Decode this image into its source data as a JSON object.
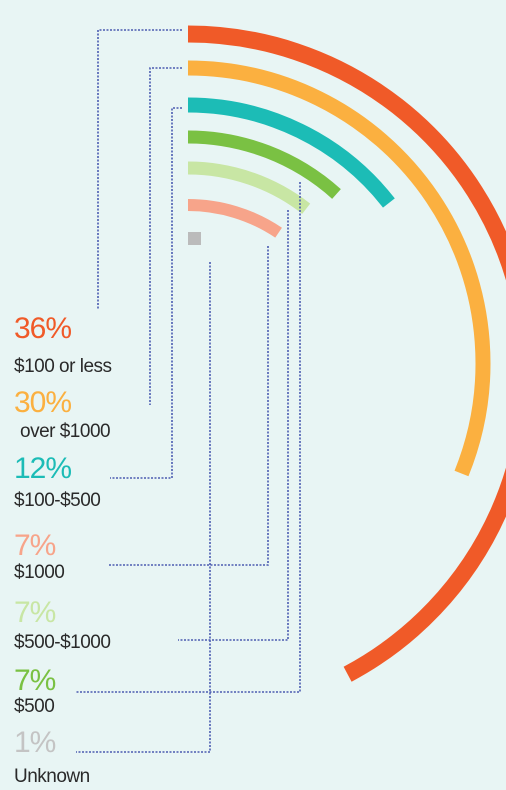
{
  "chart_data": {
    "type": "radial-bar",
    "grid": false,
    "legend_placement": "left",
    "series": [
      {
        "label": "$100 or less",
        "value": 36,
        "display": "36%",
        "color": "#f05a28"
      },
      {
        "label": "over $1000",
        "value": 30,
        "display": "30%",
        "color": "#fbb040"
      },
      {
        "label": "$100-$500",
        "value": 12,
        "display": "12%",
        "color": "#1cbcb6"
      },
      {
        "label": "$500",
        "value": 7,
        "display": "7%",
        "color": "#7ac143"
      },
      {
        "label": "$500-$1000",
        "value": 7,
        "display": "7%",
        "color": "#c8e6a4"
      },
      {
        "label": "$1000",
        "value": 7,
        "display": "7%",
        "color": "#f7a48a"
      },
      {
        "label": "Unknown",
        "value": 1,
        "display": "1%",
        "color": "#bbbbbb"
      }
    ]
  }
}
